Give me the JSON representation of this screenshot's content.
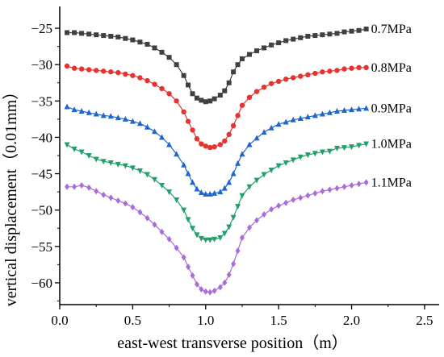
{
  "chart_data": {
    "type": "line",
    "xlabel": "east-west transverse position（m）",
    "ylabel": "vertical displacement（0.01mm）",
    "xlim": [
      0,
      2.6
    ],
    "ylim": [
      -63,
      -22
    ],
    "xticks": [
      "0.0",
      "0.5",
      "1.0",
      "1.5",
      "2.0",
      "2.5"
    ],
    "yticks": [
      "-25",
      "-30",
      "-35",
      "-40",
      "-45",
      "-50",
      "-55",
      "-60"
    ],
    "grid": false,
    "legend": "none (series labels at right end of each curve)",
    "series": [
      {
        "name": "0.7MPa",
        "color": "#404040",
        "marker": "square",
        "x": [
          0.05,
          0.1,
          0.15,
          0.2,
          0.25,
          0.3,
          0.35,
          0.4,
          0.45,
          0.5,
          0.55,
          0.6,
          0.65,
          0.7,
          0.75,
          0.8,
          0.85,
          0.88,
          0.91,
          0.94,
          0.97,
          1.0,
          1.03,
          1.06,
          1.1,
          1.13,
          1.16,
          1.19,
          1.22,
          1.25,
          1.3,
          1.35,
          1.4,
          1.45,
          1.5,
          1.55,
          1.6,
          1.65,
          1.7,
          1.75,
          1.8,
          1.85,
          1.9,
          1.95,
          2.0,
          2.05,
          2.1
        ],
        "y": [
          -25.6,
          -25.6,
          -25.7,
          -25.8,
          -25.9,
          -26.0,
          -26.1,
          -26.2,
          -26.4,
          -26.6,
          -26.9,
          -27.2,
          -27.7,
          -28.3,
          -29.0,
          -30.0,
          -31.5,
          -32.8,
          -34.0,
          -34.6,
          -34.9,
          -35.1,
          -35.0,
          -34.7,
          -34.2,
          -33.6,
          -32.5,
          -31.0,
          -30.0,
          -29.2,
          -28.6,
          -28.1,
          -27.7,
          -27.3,
          -27.0,
          -26.7,
          -26.5,
          -26.3,
          -26.1,
          -26.0,
          -25.9,
          -25.8,
          -25.7,
          -25.5,
          -25.4,
          -25.3,
          -25.1
        ]
      },
      {
        "name": "0.8MPa",
        "color": "#e8322e",
        "marker": "circle",
        "x": [
          0.05,
          0.1,
          0.15,
          0.2,
          0.25,
          0.3,
          0.35,
          0.4,
          0.45,
          0.5,
          0.55,
          0.6,
          0.65,
          0.7,
          0.75,
          0.8,
          0.85,
          0.88,
          0.91,
          0.94,
          0.97,
          1.0,
          1.03,
          1.06,
          1.1,
          1.13,
          1.16,
          1.19,
          1.22,
          1.25,
          1.3,
          1.35,
          1.4,
          1.45,
          1.5,
          1.55,
          1.6,
          1.65,
          1.7,
          1.75,
          1.8,
          1.85,
          1.9,
          1.95,
          2.0,
          2.05,
          2.1
        ],
        "y": [
          -30.2,
          -30.5,
          -30.6,
          -30.7,
          -30.8,
          -30.9,
          -31.0,
          -31.1,
          -31.3,
          -31.5,
          -31.8,
          -32.2,
          -32.7,
          -33.3,
          -34.0,
          -35.0,
          -36.5,
          -37.8,
          -39.0,
          -40.2,
          -40.9,
          -41.2,
          -41.4,
          -41.3,
          -41.0,
          -40.5,
          -39.6,
          -38.4,
          -37.0,
          -35.6,
          -34.5,
          -33.7,
          -33.1,
          -32.6,
          -32.3,
          -32.0,
          -31.8,
          -31.6,
          -31.4,
          -31.2,
          -31.0,
          -30.9,
          -30.8,
          -30.6,
          -30.5,
          -30.4,
          -30.4
        ]
      },
      {
        "name": "0.9MPa",
        "color": "#1f66cc",
        "marker": "triangle-up",
        "x": [
          0.05,
          0.1,
          0.15,
          0.2,
          0.25,
          0.3,
          0.35,
          0.4,
          0.45,
          0.5,
          0.55,
          0.6,
          0.65,
          0.7,
          0.75,
          0.8,
          0.85,
          0.88,
          0.91,
          0.94,
          0.97,
          1.0,
          1.03,
          1.06,
          1.1,
          1.13,
          1.16,
          1.19,
          1.22,
          1.25,
          1.3,
          1.35,
          1.4,
          1.45,
          1.5,
          1.55,
          1.6,
          1.65,
          1.7,
          1.75,
          1.8,
          1.85,
          1.9,
          1.95,
          2.0,
          2.05,
          2.1
        ],
        "y": [
          -35.8,
          -36.2,
          -36.4,
          -36.6,
          -36.8,
          -37.0,
          -37.1,
          -37.3,
          -37.5,
          -37.8,
          -38.1,
          -38.6,
          -39.2,
          -40.0,
          -41.0,
          -42.3,
          -43.8,
          -45.0,
          -46.2,
          -47.1,
          -47.6,
          -47.8,
          -47.8,
          -47.7,
          -47.5,
          -47.0,
          -46.2,
          -45.0,
          -43.6,
          -42.3,
          -41.0,
          -40.1,
          -39.3,
          -38.7,
          -38.2,
          -37.9,
          -37.6,
          -37.4,
          -37.2,
          -37.0,
          -36.8,
          -36.6,
          -36.4,
          -36.3,
          -36.2,
          -36.1,
          -36.0
        ]
      },
      {
        "name": "1.0MPa",
        "color": "#22a06b",
        "marker": "triangle-down",
        "x": [
          0.05,
          0.1,
          0.15,
          0.2,
          0.25,
          0.3,
          0.35,
          0.4,
          0.45,
          0.5,
          0.55,
          0.6,
          0.65,
          0.7,
          0.75,
          0.8,
          0.85,
          0.88,
          0.91,
          0.94,
          0.97,
          1.0,
          1.03,
          1.06,
          1.1,
          1.13,
          1.16,
          1.19,
          1.22,
          1.25,
          1.3,
          1.35,
          1.4,
          1.45,
          1.5,
          1.55,
          1.6,
          1.65,
          1.7,
          1.75,
          1.8,
          1.85,
          1.9,
          1.95,
          2.0,
          2.05,
          2.1
        ],
        "y": [
          -41.0,
          -41.6,
          -42.0,
          -42.5,
          -43.0,
          -43.3,
          -43.5,
          -43.7,
          -43.9,
          -44.2,
          -44.6,
          -45.1,
          -45.8,
          -46.6,
          -47.5,
          -48.6,
          -50.0,
          -51.3,
          -52.5,
          -53.4,
          -53.9,
          -54.1,
          -54.1,
          -54.0,
          -53.8,
          -53.2,
          -52.3,
          -51.0,
          -49.5,
          -48.0,
          -46.8,
          -45.9,
          -45.1,
          -44.5,
          -43.9,
          -43.5,
          -43.1,
          -42.7,
          -42.4,
          -42.2,
          -42.0,
          -41.9,
          -41.5,
          -41.4,
          -41.3,
          -41.1,
          -40.9
        ]
      },
      {
        "name": "1.1MPa",
        "color": "#a96cd9",
        "marker": "diamond",
        "x": [
          0.05,
          0.1,
          0.15,
          0.2,
          0.25,
          0.3,
          0.35,
          0.4,
          0.45,
          0.5,
          0.55,
          0.6,
          0.65,
          0.7,
          0.75,
          0.8,
          0.85,
          0.88,
          0.91,
          0.94,
          0.97,
          1.0,
          1.03,
          1.06,
          1.1,
          1.13,
          1.16,
          1.19,
          1.22,
          1.25,
          1.3,
          1.35,
          1.4,
          1.45,
          1.5,
          1.55,
          1.6,
          1.65,
          1.7,
          1.75,
          1.8,
          1.85,
          1.9,
          1.95,
          2.0,
          2.05,
          2.1
        ],
        "y": [
          -46.8,
          -46.8,
          -46.6,
          -46.9,
          -47.4,
          -47.9,
          -48.3,
          -48.7,
          -49.1,
          -49.6,
          -50.3,
          -51.1,
          -52.0,
          -53.0,
          -54.0,
          -55.2,
          -56.5,
          -57.8,
          -59.0,
          -60.2,
          -60.9,
          -61.2,
          -61.3,
          -61.1,
          -60.6,
          -60.0,
          -58.9,
          -57.4,
          -55.6,
          -53.8,
          -52.4,
          -51.4,
          -50.6,
          -49.9,
          -49.4,
          -49.0,
          -48.6,
          -48.3,
          -48.0,
          -47.7,
          -47.4,
          -47.2,
          -47.0,
          -46.8,
          -46.6,
          -46.4,
          -46.2
        ]
      }
    ]
  }
}
